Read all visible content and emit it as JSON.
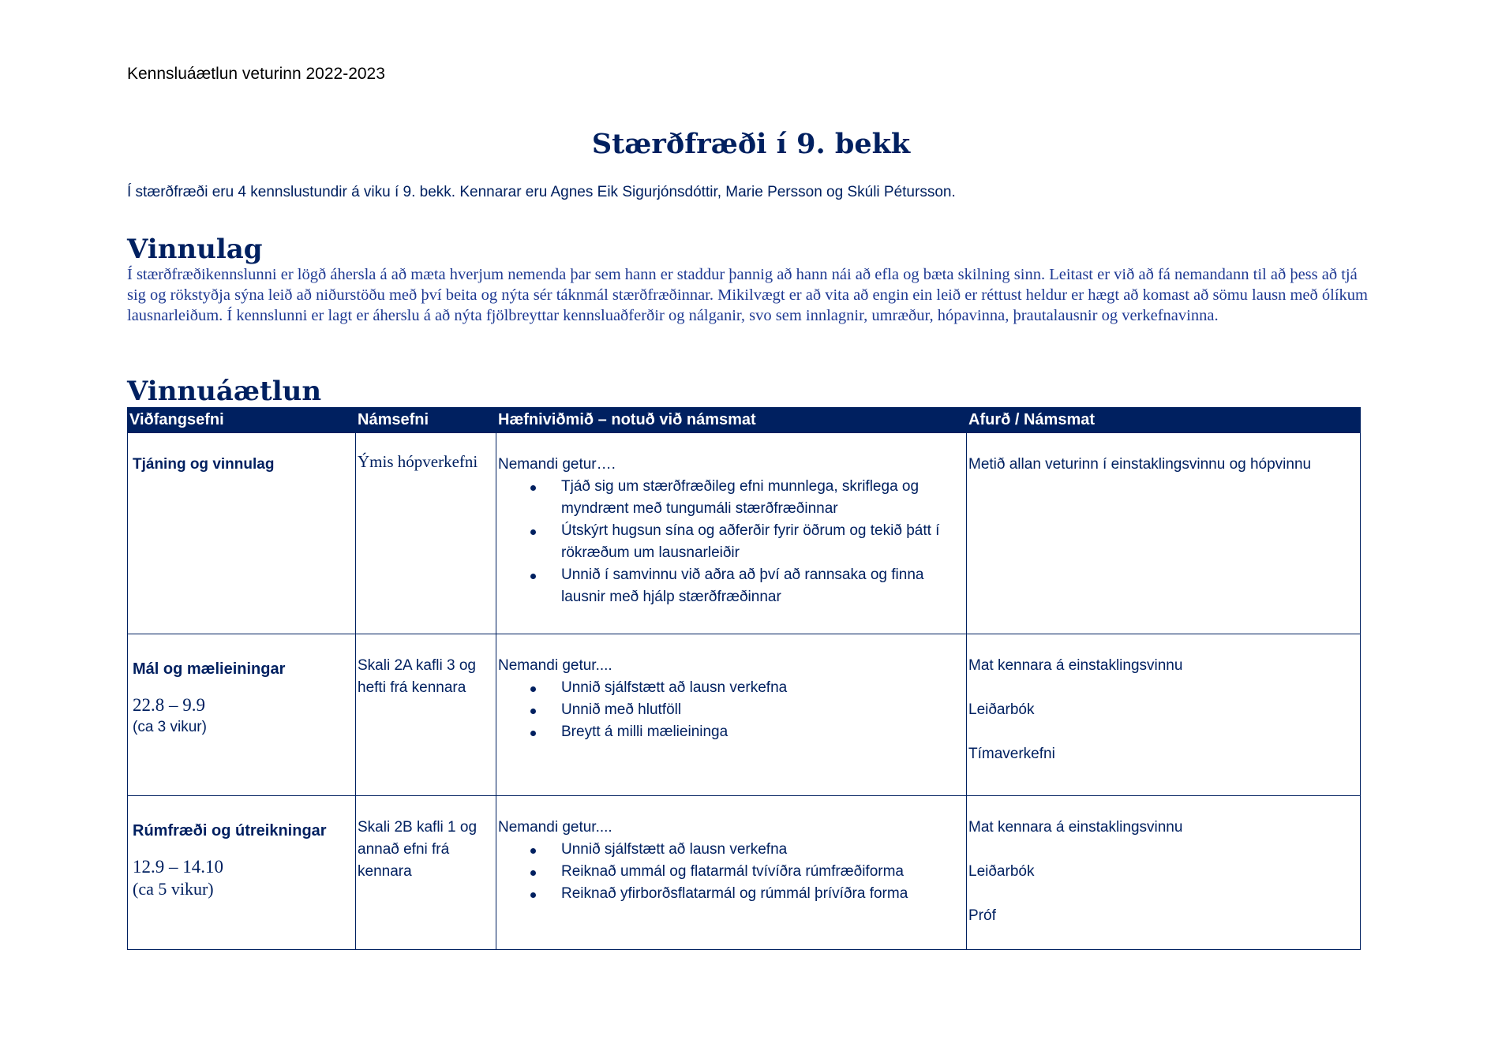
{
  "header": "Kennsluáætlun veturinn 2022-2023",
  "title": "Stærðfræði í 9. bekk",
  "intro": "Í stærðfræði eru 4 kennslustundir á viku í 9. bekk. Kennarar eru Agnes Eik Sigurjónsdóttir, Marie Persson og Skúli Pétursson.",
  "vinnulag": {
    "heading": "Vinnulag",
    "text": "Í stærðfræðikennslunni er lögð áhersla á að mæta hverjum nemenda þar sem hann er staddur þannig að hann nái að efla og bæta skilning sinn. Leitast er við að fá nemandann til að þess að tjá sig og rökstyðja sýna leið að niðurstöðu með því beita og nýta sér táknmál stærðfræðinnar. Mikilvægt er að vita að engin ein leið er réttust heldur er hægt að komast að sömu lausn með ólíkum lausnarleiðum. Í kennslunni er lagt er áherslu á að nýta fjölbreyttar kennsluaðferðir og nálganir, svo sem innlagnir, umræður, hópavinna, þrautalausnir og verkefnavinna."
  },
  "plan": {
    "heading": "Vinnuáætlun",
    "columns": [
      "Viðfangsefni",
      "Námsefni",
      "Hæfniviðmið – notuð við  námsmat",
      "Afurð / Námsmat"
    ],
    "rows": [
      {
        "topic": "Tjáning og vinnulag",
        "date": "",
        "duration": "",
        "material": "Ýmis hópverkefni",
        "lead": "Nemandi getur….",
        "goals": [
          "Tjáð sig um stærðfræðileg efni munnlega, skriflega og myndrænt með tungumáli stærðfræðinnar",
          "Útskýrt hugsun sína og aðferðir fyrir öðrum og tekið þátt  í rökræðum um lausnarleiðir",
          "Unnið í samvinnu við aðra að því að rannsaka og finna lausnir með hjálp stærðfræðinnar"
        ],
        "assessment": [
          "Metið allan veturinn í einstaklingsvinnu og hópvinnu"
        ]
      },
      {
        "topic": "Mál og mælieiningar",
        "date": "22.8 – 9.9",
        "duration": "(ca 3 vikur)",
        "material": "Skali 2A kafli 3 og hefti frá kennara",
        "lead": "Nemandi getur....",
        "goals": [
          "Unnið sjálfstætt að lausn verkefna",
          "Unnið með hlutföll",
          "Breytt á milli mælieininga"
        ],
        "assessment": [
          "Mat kennara á einstaklingsvinnu",
          "Leiðarbók",
          "Tímaverkefni"
        ]
      },
      {
        "topic": "Rúmfræði og útreikningar",
        "date": "12.9 – 14.10",
        "duration": "(ca 5 vikur)",
        "material": "Skali 2B kafli 1 og annað efni frá kennara",
        "lead": "Nemandi getur....",
        "goals": [
          "Unnið sjálfstætt að lausn verkefna",
          "Reiknað ummál og flatarmál tvívíðra rúmfræðiforma",
          "Reiknað yfirborðsflatarmál og rúmmál þrívíðra forma"
        ],
        "assessment": [
          "Mat kennara á einstaklingsvinnu",
          "Leiðarbók",
          "Próf"
        ]
      }
    ]
  }
}
